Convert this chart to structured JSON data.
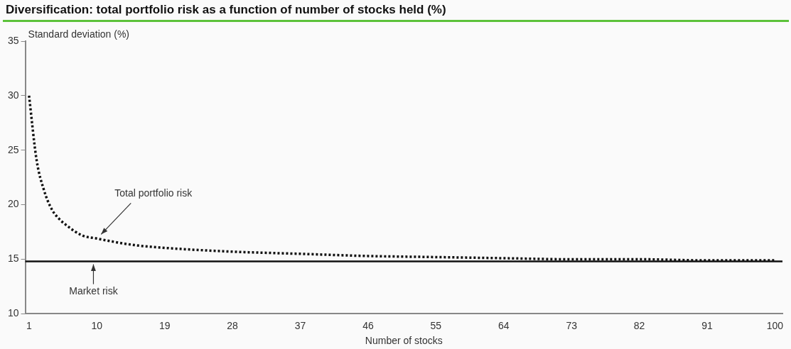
{
  "chart_data": {
    "type": "line",
    "title": "Diversification: total portfolio risk as a function of number of stocks held (%)",
    "xlabel": "Number of stocks",
    "ylabel": "Standard deviation (%)",
    "x": [
      1,
      2,
      3,
      4,
      5,
      6,
      8,
      10,
      15,
      20,
      28,
      37,
      46,
      55,
      64,
      73,
      82,
      91,
      100
    ],
    "series": [
      {
        "color": "#111111",
        "values": [
          30,
          24.1,
          21.3,
          19.6,
          18.7,
          18.1,
          17.2,
          16.9,
          16.3,
          16.0,
          15.7,
          15.5,
          15.3,
          15.2,
          15.1,
          15.0,
          15.0,
          14.9,
          14.9
        ]
      }
    ],
    "xlim": [
      0.5,
      101
    ],
    "xticks": [
      1,
      10,
      19,
      28,
      37,
      46,
      55,
      64,
      73,
      82,
      91,
      100
    ],
    "ylim": [
      10,
      35
    ],
    "yticks": [
      10,
      15,
      20,
      25,
      30,
      35
    ],
    "ref_lines": [
      {
        "axis": "y",
        "value": 14.8,
        "label": "Market risk",
        "color": "#111111",
        "line_style": "solid"
      }
    ],
    "annotations": [
      {
        "text": "Total portfolio risk",
        "x": 10,
        "y": 16.9
      }
    ],
    "line_style": "dotted",
    "marker": "none",
    "grid": false,
    "legend": false
  }
}
